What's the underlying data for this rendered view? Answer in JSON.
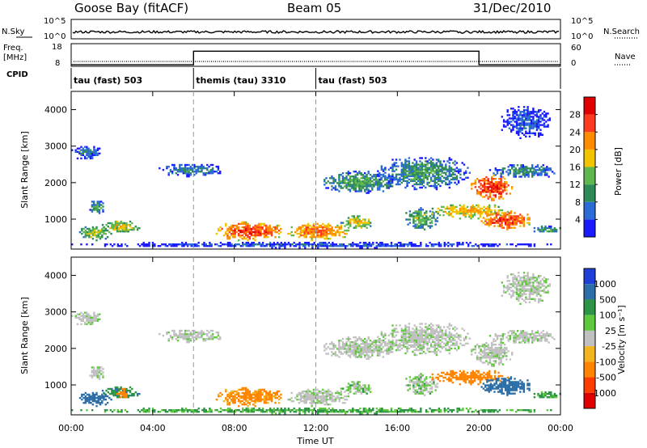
{
  "header": {
    "station": "Goose Bay (fitACF)",
    "beam": "Beam 05",
    "date": "31/Dec/2010"
  },
  "panel_labels": {
    "nsky": "N.Sky",
    "freq_top": "Freq.",
    "freq_unit": "[MHz]",
    "cpid": "CPID",
    "nsearch": "N.Search",
    "nave": "Nave"
  },
  "small_ticks": {
    "nsky_hi": "10^5",
    "nsky_lo": "10^0",
    "freq_hi": "18",
    "freq_lo": "8",
    "nave_hi": "60",
    "nave_lo": "0"
  },
  "cpid_segments": [
    {
      "label": "tau (fast) 503",
      "start_hour": 0
    },
    {
      "label": "themis (tau) 3310",
      "start_hour": 6
    },
    {
      "label": "tau (fast) 503",
      "start_hour": 12
    }
  ],
  "x_axis": {
    "label": "Time UT",
    "ticks": [
      "00:00",
      "04:00",
      "08:00",
      "12:00",
      "16:00",
      "20:00",
      "00:00"
    ]
  },
  "power_panel": {
    "ylabel": "Slant Range [km]",
    "yticks": [
      "1000",
      "2000",
      "3000",
      "4000"
    ],
    "colorbar_label": "Power [dB]",
    "colorbar_ticks": [
      "4",
      "8",
      "12",
      "16",
      "20",
      "24",
      "28"
    ]
  },
  "velocity_panel": {
    "ylabel": "Slant Range [km]",
    "yticks": [
      "1000",
      "2000",
      "3000",
      "4000"
    ],
    "colorbar_label": "Velocity [m s⁻¹]",
    "colorbar_ticks": [
      "1000",
      "500",
      "100",
      "25",
      "-25",
      "-100",
      "-500",
      "-1000"
    ]
  },
  "chart_data": {
    "type": "heatmap",
    "title": "Goose Bay (fitACF)   Beam 05   31/Dec/2010",
    "xlabel": "Time UT",
    "ylabel": "Slant Range [km]",
    "x_range_hours": [
      0,
      24
    ],
    "y_range_km": [
      180,
      4500
    ],
    "power_scale_db": [
      0,
      30
    ],
    "power_colors": [
      "#1a1aff",
      "#2a6bd6",
      "#2e8b57",
      "#5fb84e",
      "#f2c400",
      "#ff8c00",
      "#ff3b1f",
      "#e00000"
    ],
    "velocity_colors": [
      "#1f3fd6",
      "#2c6fa8",
      "#2d9446",
      "#5ec93c",
      "#c0c0c0",
      "#f2b41f",
      "#ff8400",
      "#ff3c00",
      "#e00000"
    ],
    "echo_regions": [
      {
        "t0": 0.0,
        "t1": 24.0,
        "r0": 200,
        "r1": 350,
        "power_db": 6,
        "velocity": 30
      },
      {
        "t0": 0.3,
        "t1": 2.0,
        "r0": 400,
        "r1": 800,
        "power_db": 16,
        "velocity": 140
      },
      {
        "t0": 1.5,
        "t1": 3.3,
        "r0": 600,
        "r1": 950,
        "power_db": 18,
        "velocity": 90
      },
      {
        "t0": 0.0,
        "t1": 1.5,
        "r0": 2600,
        "r1": 3000,
        "power_db": 7,
        "velocity": 0
      },
      {
        "t0": 0.8,
        "t1": 1.6,
        "r0": 1100,
        "r1": 1500,
        "power_db": 12,
        "velocity": 0
      },
      {
        "t0": 2.2,
        "t1": 2.8,
        "r0": 600,
        "r1": 900,
        "power_db": 20,
        "velocity": -150
      },
      {
        "t0": 4.2,
        "t1": 7.4,
        "r0": 2150,
        "r1": 2500,
        "power_db": 9,
        "velocity": 0
      },
      {
        "t0": 7.0,
        "t1": 10.5,
        "r0": 400,
        "r1": 900,
        "power_db": 26,
        "velocity": -110
      },
      {
        "t0": 10.5,
        "t1": 13.6,
        "r0": 400,
        "r1": 900,
        "power_db": 24,
        "velocity": 0
      },
      {
        "t0": 13.2,
        "t1": 14.8,
        "r0": 700,
        "r1": 1100,
        "power_db": 18,
        "velocity": 10
      },
      {
        "t0": 12.2,
        "t1": 16.0,
        "r0": 1700,
        "r1": 2300,
        "power_db": 12,
        "velocity": 0
      },
      {
        "t0": 15.0,
        "t1": 19.5,
        "r0": 1800,
        "r1": 2700,
        "power_db": 11,
        "velocity": 0
      },
      {
        "t0": 16.3,
        "t1": 18.0,
        "r0": 700,
        "r1": 1300,
        "power_db": 14,
        "velocity": 10
      },
      {
        "t0": 17.5,
        "t1": 21.5,
        "r0": 1000,
        "r1": 1400,
        "power_db": 20,
        "velocity": -120
      },
      {
        "t0": 19.6,
        "t1": 21.6,
        "r0": 1500,
        "r1": 2200,
        "power_db": 28,
        "velocity": 0
      },
      {
        "t0": 20.0,
        "t1": 22.5,
        "r0": 700,
        "r1": 1200,
        "power_db": 27,
        "velocity": 140
      },
      {
        "t0": 20.5,
        "t1": 23.8,
        "r0": 2100,
        "r1": 2500,
        "power_db": 10,
        "velocity": 0
      },
      {
        "t0": 21.0,
        "t1": 23.5,
        "r0": 3200,
        "r1": 4100,
        "power_db": 6,
        "velocity": 0
      },
      {
        "t0": 22.5,
        "t1": 24.0,
        "r0": 600,
        "r1": 800,
        "power_db": 12,
        "velocity": 30
      }
    ],
    "frequency_mhz": 10.5,
    "nave_steps": [
      {
        "t0": 0,
        "t1": 6,
        "value": 4
      },
      {
        "t0": 6,
        "t1": 20,
        "value": 40
      },
      {
        "t0": 20,
        "t1": 24,
        "value": 4
      }
    ]
  }
}
